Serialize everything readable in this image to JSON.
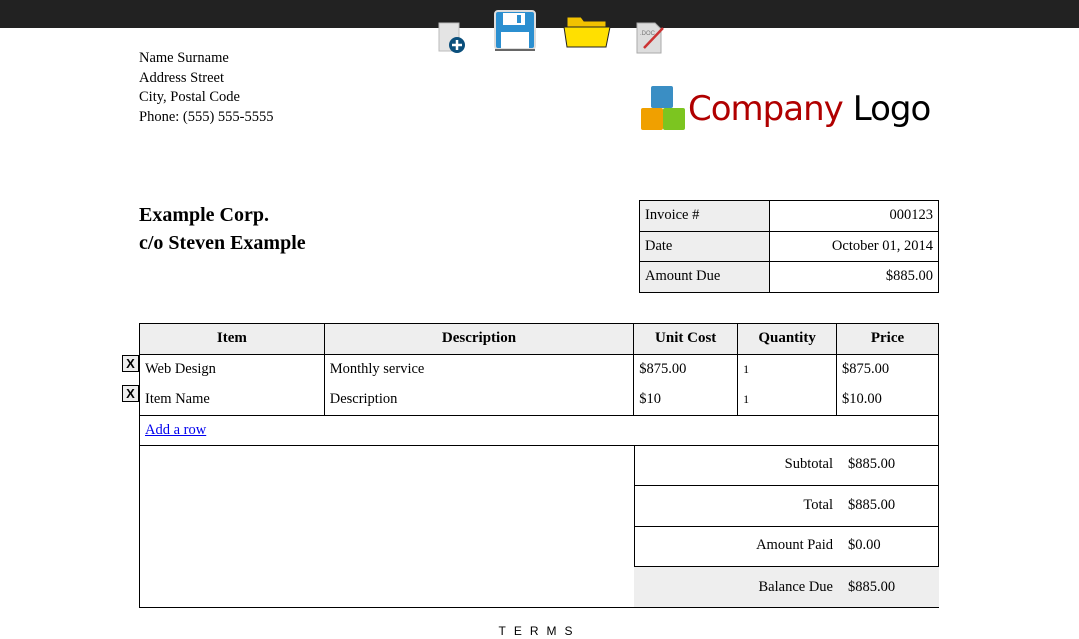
{
  "toolbar": {
    "icons": [
      "new-document-icon",
      "save-icon",
      "open-folder-icon",
      "export-doc-icon"
    ],
    "doc_label": ".DOC"
  },
  "sender": {
    "name": "Name Surname",
    "street": "Address Street",
    "city": "City, Postal Code",
    "phone": "Phone: (555) 555-5555"
  },
  "logo": {
    "text1": "Company",
    "text2": "Logo",
    "color1": "#b00000"
  },
  "customer": {
    "line1": "Example Corp.",
    "line2": "c/o Steven Example"
  },
  "meta": [
    {
      "label": "Invoice #",
      "value": "000123"
    },
    {
      "label": "Date",
      "value": "October 01, 2014"
    },
    {
      "label": "Amount Due",
      "value": "$885.00"
    }
  ],
  "items": {
    "headers": [
      "Item",
      "Description",
      "Unit Cost",
      "Quantity",
      "Price"
    ],
    "rows": [
      {
        "item": "Web Design",
        "description": "Monthly service",
        "unit_cost": "$875.00",
        "quantity": "1",
        "price": "$875.00"
      },
      {
        "item": "Item Name",
        "description": "Description",
        "unit_cost": "$10",
        "quantity": "1",
        "price": "$10.00"
      }
    ],
    "delete_label": "X",
    "add_row": "Add a row"
  },
  "totals": [
    {
      "label": "Subtotal",
      "value": "$885.00"
    },
    {
      "label": "Total",
      "value": "$885.00"
    },
    {
      "label": "Amount Paid",
      "value": "$0.00"
    },
    {
      "label": "Balance Due",
      "value": "$885.00"
    }
  ],
  "terms": "TERMS"
}
